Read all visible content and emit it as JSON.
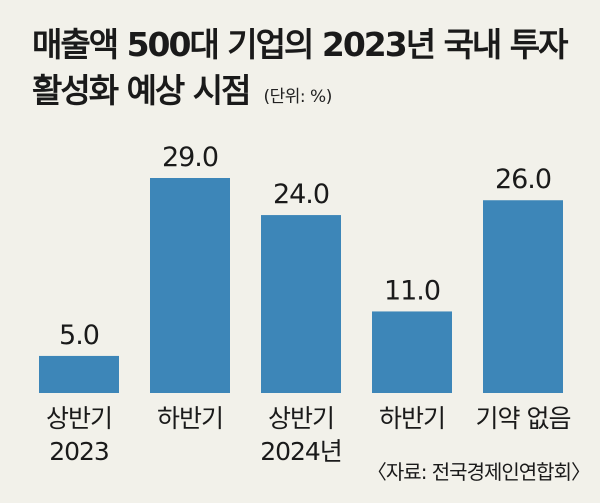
{
  "title_line1": "매출액 500대 기업의 2023년 국내 투자",
  "title_line2": "활성화 예상 시점",
  "unit": "(단위: %)",
  "source": "〈자료: 전국경제인연합회〉",
  "colors": {
    "bar": "#3d86b8",
    "background": "#f2f1ea",
    "text": "#1a1a1a"
  },
  "chart_data": {
    "type": "bar",
    "categories": [
      [
        "상반기",
        "2023"
      ],
      [
        "하반기",
        ""
      ],
      [
        "상반기",
        "2024년"
      ],
      [
        "하반기",
        ""
      ],
      [
        "기약 없음",
        ""
      ]
    ],
    "values": [
      5.0,
      29.0,
      24.0,
      11.0,
      26.0
    ],
    "value_labels": [
      "5.0",
      "29.0",
      "24.0",
      "11.0",
      "26.0"
    ],
    "title": "매출액 500대 기업의 2023년 국내 투자 활성화 예상 시점",
    "ylabel": "",
    "ylim": [
      0,
      29.0
    ],
    "grid": false,
    "legend": "none"
  }
}
